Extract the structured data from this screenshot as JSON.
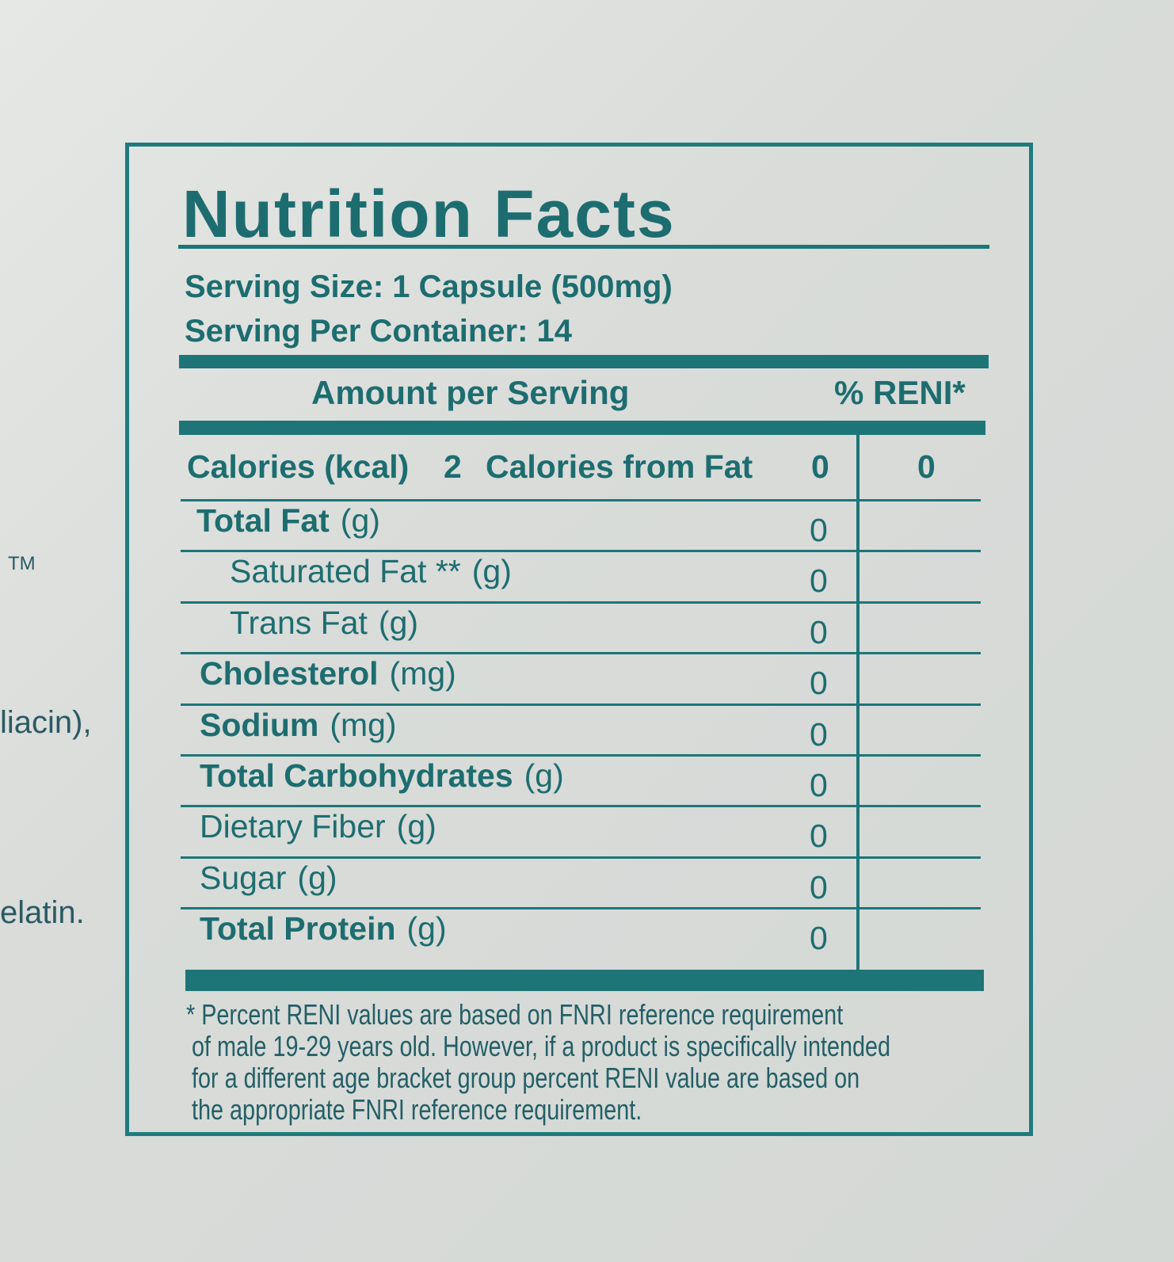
{
  "side_fragments": [
    "TM",
    "liacin),",
    "elatin."
  ],
  "label": {
    "title": "Nutrition Facts",
    "serving_size": "Serving Size: 1 Capsule (500mg)",
    "servings_per_container": "Serving Per Container: 14",
    "header": {
      "amount": "Amount per Serving",
      "reni": "% RENI*"
    },
    "calories": {
      "label": "Calories (kcal)",
      "value": 2,
      "fat_label": "Calories from Fat",
      "fat_value": 0,
      "reni": 0
    },
    "rows": [
      {
        "name": "Total Fat",
        "unit": "(g)",
        "amount": 0,
        "bold": true,
        "indent": false
      },
      {
        "name": "Saturated Fat **",
        "unit": "(g)",
        "amount": 0,
        "bold": false,
        "indent": true
      },
      {
        "name": "Trans Fat",
        "unit": "(g)",
        "amount": 0,
        "bold": false,
        "indent": true
      },
      {
        "name": "Cholesterol",
        "unit": "(mg)",
        "amount": 0,
        "bold": true,
        "indent": false
      },
      {
        "name": "Sodium",
        "unit": "(mg)",
        "amount": 0,
        "bold": true,
        "indent": false
      },
      {
        "name": "Total Carbohydrates",
        "unit": "(g)",
        "amount": 0,
        "bold": true,
        "indent": false
      },
      {
        "name": "Dietary Fiber",
        "unit": "(g)",
        "amount": 0,
        "bold": false,
        "indent": false
      },
      {
        "name": "Sugar",
        "unit": "(g)",
        "amount": 0,
        "bold": false,
        "indent": false
      },
      {
        "name": "Total Protein",
        "unit": "(g)",
        "amount": 0,
        "bold": true,
        "indent": false
      }
    ],
    "footnote": [
      "* Percent RENI values are based on FNRI reference requirement",
      "of male 19-29 years old. However, if a product is specifically intended",
      "for a different age bracket group percent RENI value are based on",
      "the appropriate FNRI reference requirement."
    ]
  }
}
